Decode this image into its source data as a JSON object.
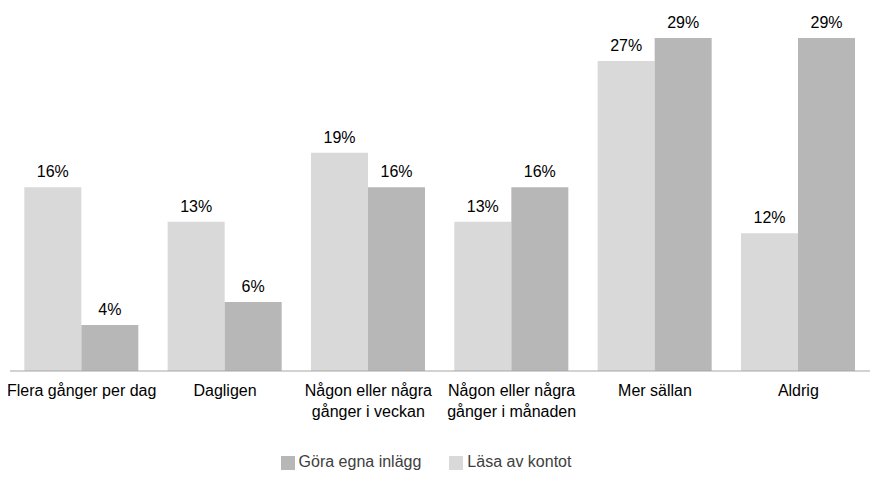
{
  "chart_data": {
    "type": "bar",
    "categories": [
      "Flera gånger per dag",
      "Dagligen",
      "Någon eller några gånger i veckan",
      "Någon eller några gånger i månaden",
      "Mer sällan",
      "Aldrig"
    ],
    "series": [
      {
        "name": "Läsa av kontot",
        "color": "#d9d9d9",
        "values": [
          16,
          13,
          19,
          13,
          27,
          12
        ],
        "value_labels": [
          "16%",
          "13%",
          "19%",
          "13%",
          "27%",
          "12%"
        ]
      },
      {
        "name": "Göra egna inlägg",
        "color": "#b7b7b7",
        "values": [
          4,
          6,
          16,
          16,
          29,
          29
        ],
        "value_labels": [
          "4%",
          "6%",
          "16%",
          "16%",
          "29%",
          "29%"
        ]
      }
    ],
    "data_labels": true,
    "tick_labels": "x",
    "legend": "bottom"
  }
}
